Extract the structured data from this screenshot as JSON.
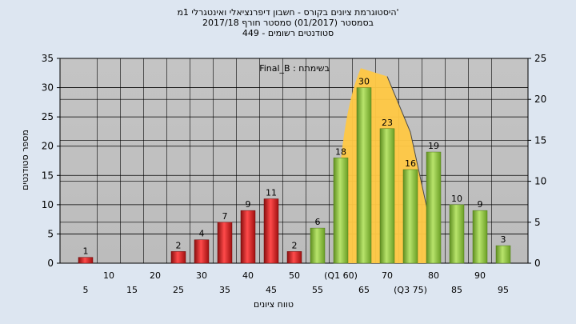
{
  "header": {
    "title": "היסטוגרמת ציונים בקורס - חשבון דיפרנציאלי ואינטגרלי 1מ'",
    "subtitle": "בסמסטר  (01/2017)  סמסטר חורף 2017/18",
    "students": "449 - סטודנטים רשומים"
  },
  "colors": {
    "background": "#dde6f1",
    "plot_bg": "#c0c0c0",
    "fail_bar": "#d42a2a",
    "pass_bar": "#8dc63f",
    "curve_fill": "#ffc843",
    "curve_line": "#4a4a4a"
  },
  "chart_data": {
    "type": "bar",
    "legend_text": "Final_B : בשימתח",
    "xlabel": "טווח ציונים",
    "ylabel": "מספר סטודנטים",
    "ylim": [
      0,
      35
    ],
    "y2lim": [
      0,
      25
    ],
    "yticks": [
      0,
      5,
      10,
      15,
      20,
      25,
      30,
      35
    ],
    "y2ticks": [
      0,
      5,
      10,
      15,
      20,
      25
    ],
    "grid": true,
    "categories": [
      "5",
      "10",
      "15",
      "20",
      "25",
      "30",
      "35",
      "40",
      "45",
      "50",
      "55",
      "(Q1 60)",
      "65",
      "70",
      "(Q3 75)",
      "80",
      "85",
      "90",
      "95"
    ],
    "values": [
      1,
      0,
      0,
      0,
      2,
      4,
      7,
      9,
      11,
      2,
      6,
      18,
      30,
      23,
      16,
      19,
      10,
      9,
      3
    ],
    "fail_below": 55,
    "curve": {
      "x_categories": [
        "(Q1 60)",
        "65",
        "70",
        "(Q3 75)",
        "80"
      ],
      "y2_values": [
        12.5,
        23.8,
        22.8,
        16,
        3
      ]
    }
  }
}
